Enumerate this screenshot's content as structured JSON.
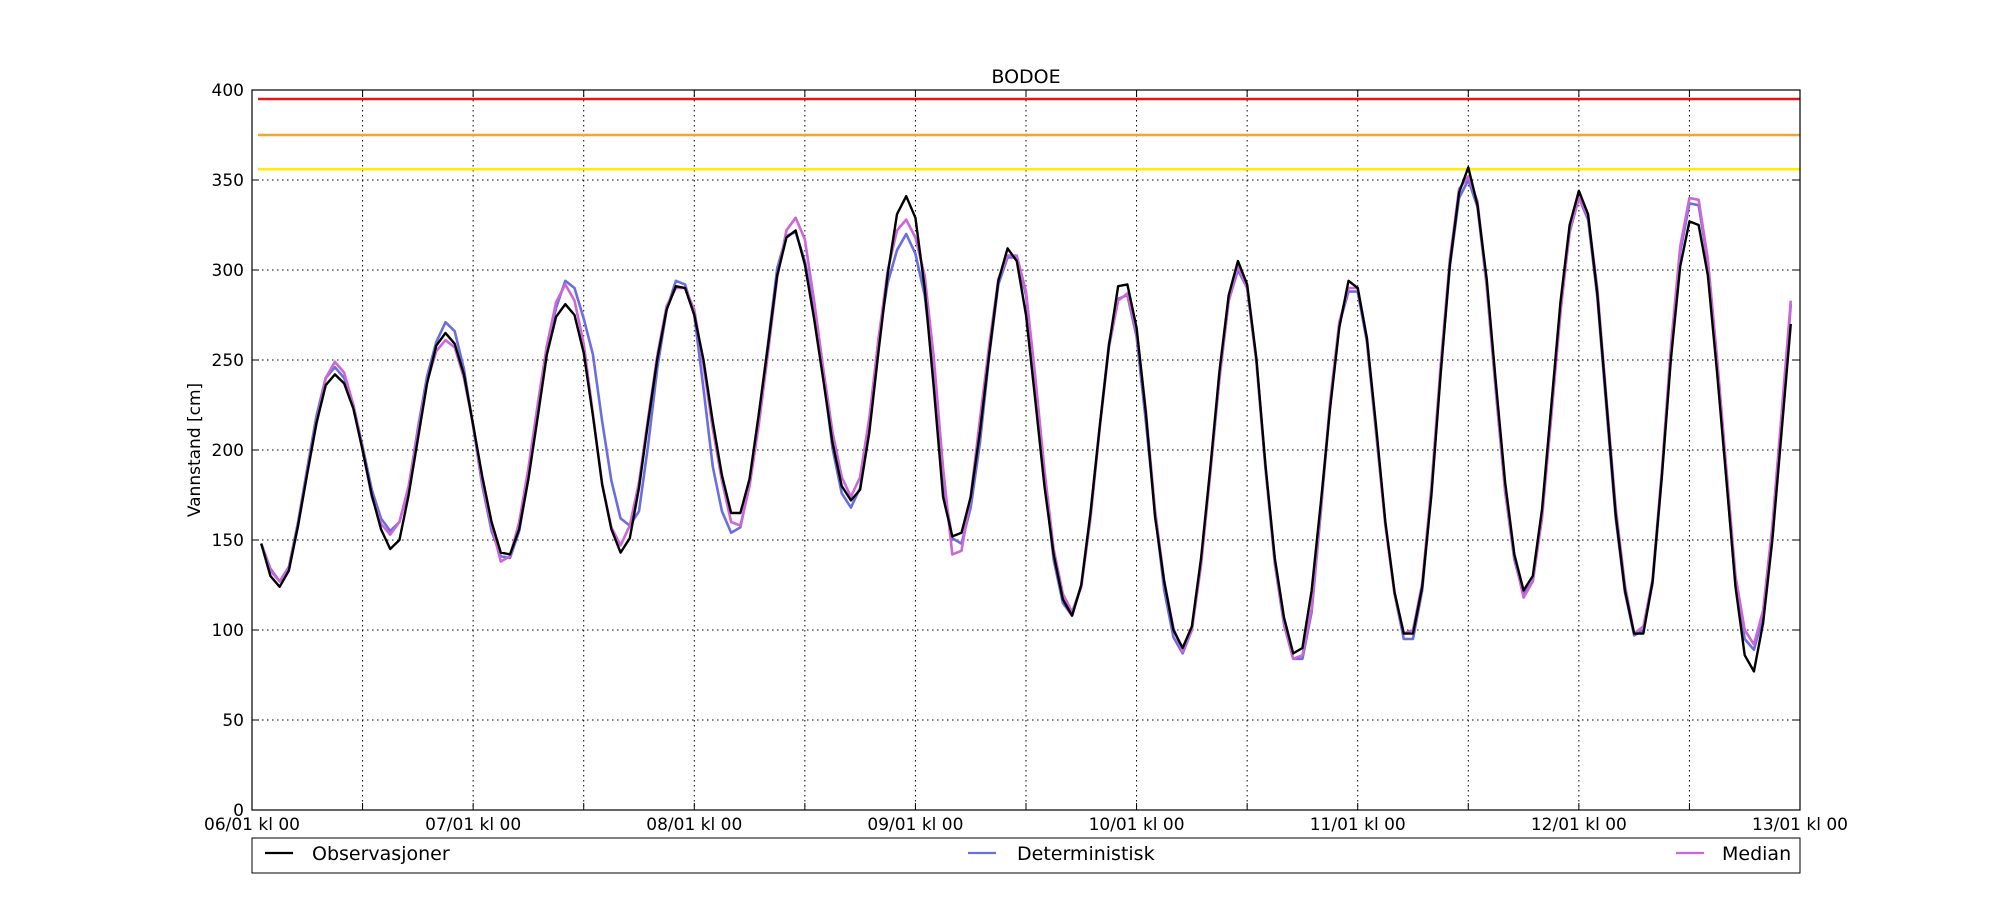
{
  "chart_data": {
    "type": "line",
    "title": "BODOE",
    "xlabel": "",
    "ylabel": "Vannstand [cm]",
    "ylim": [
      0,
      400
    ],
    "xlim_hours": [
      0,
      168
    ],
    "grid": true,
    "legend_placement": "bottom",
    "x_ticks": [
      {
        "label": "06/01 kl 00",
        "hour": 0
      },
      {
        "label": "",
        "hour": 12
      },
      {
        "label": "07/01 kl 00",
        "hour": 24
      },
      {
        "label": "",
        "hour": 36
      },
      {
        "label": "08/01 kl 00",
        "hour": 48
      },
      {
        "label": "",
        "hour": 60
      },
      {
        "label": "09/01 kl 00",
        "hour": 72
      },
      {
        "label": "",
        "hour": 84
      },
      {
        "label": "10/01 kl 00",
        "hour": 96
      },
      {
        "label": "",
        "hour": 108
      },
      {
        "label": "11/01 kl 00",
        "hour": 120
      },
      {
        "label": "",
        "hour": 132
      },
      {
        "label": "12/01 kl 00",
        "hour": 144
      },
      {
        "label": "",
        "hour": 156
      },
      {
        "label": "13/01 kl 00",
        "hour": 168
      }
    ],
    "y_ticks": [
      "0",
      "50",
      "100",
      "150",
      "200",
      "250",
      "300",
      "350",
      "400"
    ],
    "thresholds": [
      {
        "value": 395,
        "color": "#e8161c"
      },
      {
        "value": 375,
        "color": "#f5a623"
      },
      {
        "value": 356,
        "color": "#ffee00"
      }
    ],
    "x_hours": [
      1,
      2,
      3,
      4,
      5,
      6,
      7,
      8,
      9,
      10,
      11,
      12,
      13,
      14,
      15,
      16,
      17,
      18,
      19,
      20,
      21,
      22,
      23,
      24,
      25,
      26,
      27,
      28,
      29,
      30,
      31,
      32,
      33,
      34,
      35,
      36,
      37,
      38,
      39,
      40,
      41,
      42,
      43,
      44,
      45,
      46,
      47,
      48,
      49,
      50,
      51,
      52,
      53,
      54,
      55,
      56,
      57,
      58,
      59,
      60,
      61,
      62,
      63,
      64,
      65,
      66,
      67,
      68,
      69,
      70,
      71,
      72,
      73,
      74,
      75,
      76,
      77,
      78,
      79,
      80,
      81,
      82,
      83,
      84,
      85,
      86,
      87,
      88,
      89,
      90,
      91,
      92,
      93,
      94,
      95,
      96,
      97,
      98,
      99,
      100,
      101,
      102,
      103,
      104,
      105,
      106,
      107,
      108,
      109,
      110,
      111,
      112,
      113,
      114,
      115,
      116,
      117,
      118,
      119,
      120,
      121,
      122,
      123,
      124,
      125,
      126,
      127,
      128,
      129,
      130,
      131,
      132,
      133,
      134,
      135,
      136,
      137,
      138,
      139,
      140,
      141,
      142,
      143,
      144,
      145,
      146,
      147,
      148,
      149,
      150,
      151,
      152,
      153,
      154,
      155,
      156,
      157,
      158,
      159,
      160,
      161,
      162,
      163,
      164,
      165,
      166,
      167,
      168
    ],
    "series": [
      {
        "name": "Observasjoner",
        "color": "#000000",
        "values": [
          148,
          130,
          124,
          133,
          158,
          187,
          215,
          236,
          242,
          237,
          223,
          200,
          175,
          156,
          145,
          150,
          175,
          206,
          237,
          258,
          265,
          259,
          242,
          214,
          185,
          160,
          143,
          142,
          156,
          184,
          218,
          253,
          274,
          281,
          275,
          254,
          219,
          181,
          156,
          143,
          151,
          179,
          216,
          251,
          278,
          291,
          290,
          275,
          250,
          216,
          186,
          165,
          165,
          184,
          220,
          258,
          297,
          318,
          322,
          303,
          273,
          239,
          204,
          180,
          172,
          178,
          210,
          255,
          298,
          331,
          341,
          329,
          290,
          234,
          174,
          152,
          154,
          174,
          210,
          253,
          294,
          312,
          305,
          275,
          228,
          180,
          142,
          117,
          108,
          125,
          165,
          213,
          258,
          291,
          292,
          268,
          221,
          163,
          127,
          100,
          90,
          102,
          140,
          190,
          244,
          286,
          305,
          292,
          251,
          191,
          140,
          107,
          87,
          90,
          122,
          171,
          223,
          268,
          294,
          290,
          262,
          213,
          160,
          121,
          98,
          98,
          124,
          175,
          242,
          303,
          343,
          357,
          336,
          295,
          237,
          182,
          142,
          122,
          130,
          167,
          224,
          282,
          325,
          344,
          331,
          287,
          226,
          164,
          122,
          98,
          98,
          127,
          185,
          251,
          302,
          327,
          325,
          297,
          243,
          184,
          124,
          86,
          77,
          104,
          150,
          210,
          270
        ]
      },
      {
        "name": "Deterministisk",
        "color": "#6a6ee0",
        "values": [
          148,
          134,
          127,
          135,
          160,
          190,
          219,
          240,
          246,
          240,
          225,
          202,
          178,
          162,
          155,
          160,
          179,
          212,
          241,
          260,
          271,
          266,
          245,
          213,
          180,
          155,
          141,
          140,
          155,
          185,
          222,
          256,
          279,
          294,
          290,
          273,
          253,
          216,
          183,
          162,
          158,
          166,
          203,
          246,
          278,
          294,
          292,
          275,
          234,
          191,
          166,
          154,
          157,
          181,
          219,
          259,
          301,
          319,
          321,
          305,
          277,
          242,
          201,
          176,
          168,
          179,
          214,
          262,
          293,
          311,
          320,
          309,
          286,
          244,
          181,
          151,
          148,
          168,
          204,
          252,
          292,
          307,
          307,
          286,
          237,
          185,
          139,
          115,
          108,
          125,
          165,
          213,
          259,
          284,
          286,
          263,
          216,
          166,
          122,
          96,
          87,
          100,
          138,
          188,
          240,
          283,
          300,
          290,
          249,
          189,
          137,
          103,
          84,
          84,
          110,
          166,
          225,
          270,
          288,
          288,
          260,
          209,
          159,
          120,
          95,
          95,
          122,
          178,
          244,
          302,
          340,
          350,
          335,
          291,
          232,
          177,
          139,
          120,
          127,
          164,
          223,
          279,
          321,
          340,
          328,
          285,
          223,
          162,
          121,
          97,
          100,
          126,
          185,
          254,
          310,
          337,
          336,
          304,
          248,
          186,
          125,
          95,
          89,
          108,
          152,
          214,
          281
        ]
      },
      {
        "name": "Median",
        "color": "#cc66d9",
        "values": [
          148,
          133,
          127,
          134,
          158,
          188,
          215,
          240,
          249,
          243,
          225,
          200,
          174,
          159,
          153,
          160,
          180,
          210,
          238,
          255,
          261,
          257,
          240,
          214,
          182,
          158,
          138,
          141,
          160,
          190,
          225,
          258,
          282,
          292,
          283,
          259,
          220,
          181,
          157,
          147,
          158,
          182,
          218,
          253,
          280,
          290,
          290,
          278,
          247,
          212,
          183,
          160,
          158,
          180,
          214,
          254,
          296,
          322,
          329,
          317,
          283,
          245,
          210,
          185,
          174,
          185,
          218,
          262,
          300,
          322,
          328,
          318,
          297,
          251,
          190,
          142,
          144,
          174,
          217,
          258,
          295,
          308,
          308,
          288,
          241,
          189,
          145,
          120,
          110,
          124,
          162,
          212,
          257,
          283,
          287,
          266,
          222,
          167,
          127,
          101,
          88,
          100,
          136,
          187,
          240,
          283,
          302,
          290,
          250,
          190,
          139,
          104,
          84,
          86,
          112,
          168,
          227,
          271,
          290,
          290,
          262,
          211,
          158,
          120,
          98,
          100,
          126,
          180,
          247,
          306,
          345,
          352,
          338,
          292,
          233,
          177,
          141,
          118,
          127,
          162,
          218,
          276,
          322,
          340,
          330,
          290,
          228,
          168,
          125,
          98,
          102,
          128,
          188,
          258,
          313,
          340,
          339,
          306,
          251,
          190,
          130,
          100,
          92,
          111,
          158,
          220,
          283
        ]
      }
    ]
  }
}
